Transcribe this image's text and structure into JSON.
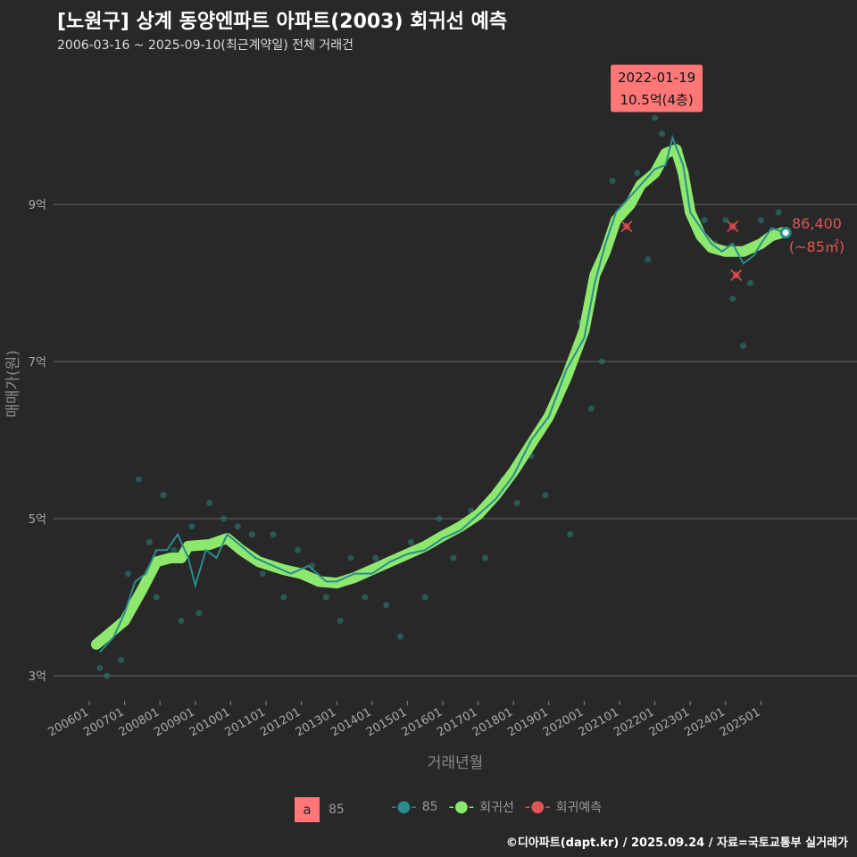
{
  "header": {
    "title": "[노원구] 상계 동양엔파트 아파트(2003) 회귀선 예측",
    "subtitle": "2006-03-16 ~ 2025-09-10(최근계약일) 전체 거래건"
  },
  "tooltip": {
    "date": "2022-01-19",
    "price": "10.5억(4층)"
  },
  "last_label": {
    "value": "86,400",
    "area": "(~85㎡)"
  },
  "legend": {
    "box_letter": "a",
    "box_label": "85",
    "series": [
      "85",
      "회귀선",
      "회귀예측"
    ]
  },
  "footer": "©디아파트(dapt.kr) / 2025.09.24 / 자료=국토교통부 실거래가",
  "colors": {
    "regression": "#8ee86e",
    "actual": "#2a8c8c",
    "prediction": "#e05555",
    "bg": "#282828"
  },
  "chart_data": {
    "type": "line",
    "xlabel": "거래년월",
    "ylabel": "매매가(원)",
    "y_ticks": [
      {
        "v": 3,
        "label": "3억"
      },
      {
        "v": 5,
        "label": "5억"
      },
      {
        "v": 7,
        "label": "7억"
      },
      {
        "v": 9,
        "label": "9억"
      }
    ],
    "x_ticks": [
      "200601",
      "200701",
      "200801",
      "200901",
      "201001",
      "201101",
      "201201",
      "201301",
      "201401",
      "201501",
      "201601",
      "201701",
      "201801",
      "201901",
      "202001",
      "202101",
      "202201",
      "202301",
      "202401",
      "202501"
    ],
    "ylim": [
      2.6,
      10.7
    ],
    "xlim": [
      2005.0,
      2027.7
    ],
    "regression": [
      [
        2006.2,
        3.4
      ],
      [
        2006.6,
        3.55
      ],
      [
        2007.0,
        3.7
      ],
      [
        2007.5,
        4.1
      ],
      [
        2007.9,
        4.45
      ],
      [
        2008.3,
        4.5
      ],
      [
        2008.6,
        4.5
      ],
      [
        2008.8,
        4.65
      ],
      [
        2009.4,
        4.67
      ],
      [
        2009.9,
        4.75
      ],
      [
        2010.3,
        4.6
      ],
      [
        2010.8,
        4.45
      ],
      [
        2011.5,
        4.35
      ],
      [
        2012.0,
        4.3
      ],
      [
        2012.5,
        4.2
      ],
      [
        2013.0,
        4.18
      ],
      [
        2013.5,
        4.25
      ],
      [
        2014.0,
        4.35
      ],
      [
        2014.5,
        4.45
      ],
      [
        2015.0,
        4.55
      ],
      [
        2015.5,
        4.65
      ],
      [
        2016.0,
        4.78
      ],
      [
        2016.5,
        4.9
      ],
      [
        2017.0,
        5.05
      ],
      [
        2017.5,
        5.3
      ],
      [
        2018.0,
        5.6
      ],
      [
        2018.5,
        5.95
      ],
      [
        2019.0,
        6.3
      ],
      [
        2019.5,
        6.8
      ],
      [
        2020.0,
        7.4
      ],
      [
        2020.3,
        8.1
      ],
      [
        2020.6,
        8.4
      ],
      [
        2020.9,
        8.8
      ],
      [
        2021.3,
        9.0
      ],
      [
        2021.6,
        9.25
      ],
      [
        2022.0,
        9.4
      ],
      [
        2022.3,
        9.65
      ],
      [
        2022.6,
        9.7
      ],
      [
        2022.8,
        9.4
      ],
      [
        2023.0,
        8.9
      ],
      [
        2023.3,
        8.6
      ],
      [
        2023.6,
        8.45
      ],
      [
        2024.0,
        8.4
      ],
      [
        2024.5,
        8.4
      ],
      [
        2025.0,
        8.5
      ],
      [
        2025.3,
        8.6
      ],
      [
        2025.6,
        8.64
      ]
    ],
    "actual": [
      [
        2006.3,
        3.3
      ],
      [
        2006.7,
        3.5
      ],
      [
        2007.0,
        3.8
      ],
      [
        2007.3,
        4.2
      ],
      [
        2007.6,
        4.3
      ],
      [
        2007.9,
        4.6
      ],
      [
        2008.2,
        4.6
      ],
      [
        2008.5,
        4.8
      ],
      [
        2008.8,
        4.5
      ],
      [
        2009.0,
        4.15
      ],
      [
        2009.3,
        4.6
      ],
      [
        2009.6,
        4.5
      ],
      [
        2009.9,
        4.8
      ],
      [
        2010.3,
        4.65
      ],
      [
        2010.7,
        4.5
      ],
      [
        2011.2,
        4.4
      ],
      [
        2011.7,
        4.3
      ],
      [
        2012.2,
        4.4
      ],
      [
        2012.7,
        4.2
      ],
      [
        2013.0,
        4.2
      ],
      [
        2013.5,
        4.3
      ],
      [
        2014.0,
        4.3
      ],
      [
        2014.5,
        4.45
      ],
      [
        2015.0,
        4.55
      ],
      [
        2015.5,
        4.6
      ],
      [
        2016.0,
        4.75
      ],
      [
        2016.5,
        4.85
      ],
      [
        2017.0,
        5.05
      ],
      [
        2017.5,
        5.25
      ],
      [
        2018.0,
        5.55
      ],
      [
        2018.5,
        6.0
      ],
      [
        2019.0,
        6.3
      ],
      [
        2019.5,
        6.9
      ],
      [
        2020.0,
        7.3
      ],
      [
        2020.3,
        8.0
      ],
      [
        2020.6,
        8.5
      ],
      [
        2020.9,
        8.9
      ],
      [
        2021.3,
        9.1
      ],
      [
        2021.7,
        9.3
      ],
      [
        2022.0,
        9.45
      ],
      [
        2022.3,
        9.5
      ],
      [
        2022.5,
        9.85
      ],
      [
        2022.8,
        9.5
      ],
      [
        2023.0,
        8.9
      ],
      [
        2023.3,
        8.7
      ],
      [
        2023.6,
        8.5
      ],
      [
        2023.9,
        8.4
      ],
      [
        2024.2,
        8.5
      ],
      [
        2024.5,
        8.25
      ],
      [
        2024.8,
        8.35
      ],
      [
        2025.0,
        8.5
      ],
      [
        2025.3,
        8.7
      ],
      [
        2025.7,
        8.64
      ]
    ],
    "scatter": [
      [
        2006.3,
        3.1
      ],
      [
        2006.5,
        3.0
      ],
      [
        2006.9,
        3.2
      ],
      [
        2007.1,
        4.3
      ],
      [
        2007.4,
        5.5
      ],
      [
        2007.7,
        4.7
      ],
      [
        2007.9,
        4.0
      ],
      [
        2008.1,
        5.3
      ],
      [
        2008.4,
        4.6
      ],
      [
        2008.6,
        3.7
      ],
      [
        2008.9,
        4.9
      ],
      [
        2009.1,
        3.8
      ],
      [
        2009.4,
        5.2
      ],
      [
        2009.8,
        5.0
      ],
      [
        2010.2,
        4.9
      ],
      [
        2010.6,
        4.8
      ],
      [
        2010.9,
        4.3
      ],
      [
        2011.2,
        4.8
      ],
      [
        2011.5,
        4.0
      ],
      [
        2011.9,
        4.6
      ],
      [
        2012.3,
        4.4
      ],
      [
        2012.7,
        4.0
      ],
      [
        2013.1,
        3.7
      ],
      [
        2013.4,
        4.5
      ],
      [
        2013.8,
        4.0
      ],
      [
        2014.1,
        4.5
      ],
      [
        2014.4,
        3.9
      ],
      [
        2014.8,
        3.5
      ],
      [
        2015.1,
        4.7
      ],
      [
        2015.5,
        4.0
      ],
      [
        2015.9,
        5.0
      ],
      [
        2016.3,
        4.5
      ],
      [
        2016.8,
        5.1
      ],
      [
        2017.2,
        4.5
      ],
      [
        2017.7,
        5.5
      ],
      [
        2018.1,
        5.2
      ],
      [
        2018.5,
        5.8
      ],
      [
        2018.9,
        5.3
      ],
      [
        2019.3,
        6.5
      ],
      [
        2019.6,
        4.8
      ],
      [
        2019.9,
        7.5
      ],
      [
        2020.2,
        6.4
      ],
      [
        2020.5,
        7.0
      ],
      [
        2020.8,
        9.3
      ],
      [
        2021.0,
        8.8
      ],
      [
        2021.5,
        9.4
      ],
      [
        2021.8,
        8.3
      ],
      [
        2022.0,
        10.1
      ],
      [
        2022.2,
        9.9
      ],
      [
        2022.7,
        9.7
      ],
      [
        2023.0,
        9.1
      ],
      [
        2023.4,
        8.8
      ],
      [
        2023.7,
        8.5
      ],
      [
        2024.0,
        8.8
      ],
      [
        2024.2,
        7.8
      ],
      [
        2024.5,
        7.2
      ],
      [
        2024.7,
        8.0
      ],
      [
        2025.0,
        8.8
      ],
      [
        2025.5,
        8.9
      ]
    ],
    "predictions": [
      [
        2021.2,
        8.72
      ],
      [
        2024.2,
        8.72
      ],
      [
        2024.3,
        8.1
      ]
    ],
    "tooltip_point": [
      2022.05,
      10.5
    ]
  }
}
